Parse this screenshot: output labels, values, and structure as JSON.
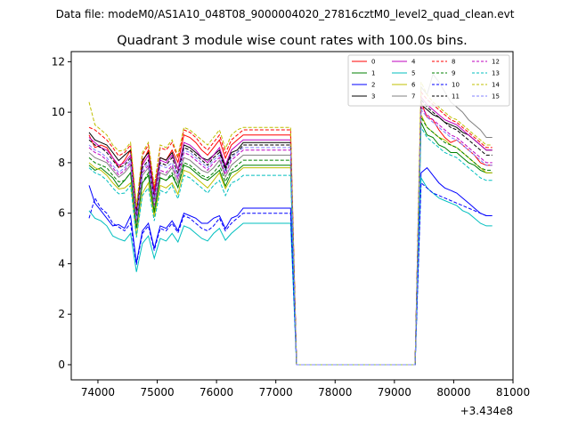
{
  "chart_data": {
    "type": "line",
    "suptitle": "Data file: modeM0/AS1A10_048T08_9000004020_27816cztM0_level2_quad_clean.evt",
    "title": "Quadrant 3 module wise count rates with 100.0s bins.",
    "xlabel": "",
    "ylabel": "",
    "x_offset_label": "+3.434e8",
    "xlim": [
      73550,
      81000
    ],
    "ylim": [
      -0.6,
      12.4
    ],
    "x_ticks": [
      74000,
      75000,
      76000,
      77000,
      78000,
      79000,
      80000,
      81000
    ],
    "x_tick_labels": [
      "74000",
      "75000",
      "76000",
      "77000",
      "78000",
      "79000",
      "80000",
      "81000"
    ],
    "y_ticks": [
      0,
      2,
      4,
      6,
      8,
      10,
      12
    ],
    "y_tick_labels": [
      "0",
      "2",
      "4",
      "6",
      "8",
      "10",
      "12"
    ],
    "legend_position": "top-right",
    "legend_columns": 4,
    "grid": false,
    "x_range": {
      "start": 73850,
      "end": 80650,
      "step": 100
    },
    "series": [
      {
        "name": "0",
        "color": "#ff0000",
        "dash": false,
        "profile": [
          9.1,
          8.6,
          8.7,
          8.6,
          8.2,
          8.3,
          8.1,
          8.5,
          8.4,
          8.0,
          8.5,
          8.8,
          8.2,
          8.1,
          8.5,
          8.9,
          9.1,
          9.0,
          8.8,
          8.5,
          8.3,
          8.6,
          8.9,
          8.8,
          8.7,
          8.9,
          9.1
        ],
        "end_profile": [
          10.4,
          9.8,
          9.7,
          9.3,
          9.0,
          8.8,
          8.9,
          8.7,
          8.5,
          8.3,
          8.0,
          7.9
        ]
      },
      {
        "name": "1",
        "color": "#008000",
        "dash": false,
        "profile": [
          7.9,
          7.7,
          7.8,
          7.6,
          7.4,
          7.5,
          7.3,
          7.6,
          7.5,
          7.2,
          7.5,
          7.7,
          7.4,
          7.3,
          7.5,
          7.8,
          7.9,
          7.8,
          7.6,
          7.4,
          7.3,
          7.5,
          7.7,
          7.6,
          7.6,
          7.7,
          7.9
        ],
        "end_profile": [
          9.6,
          9.1,
          9.0,
          8.7,
          8.6,
          8.4,
          8.4,
          8.2,
          8.0,
          7.9,
          7.7,
          7.6
        ]
      },
      {
        "name": "2",
        "color": "#0000ff",
        "dash": false,
        "profile": [
          7.1,
          6.4,
          6.1,
          5.8,
          5.5,
          5.9,
          5.4,
          5.9,
          5.6,
          5.3,
          5.6,
          5.9,
          5.5,
          5.4,
          5.7,
          5.9,
          6.0,
          5.9,
          5.8,
          5.6,
          5.6,
          5.8,
          5.9,
          5.8,
          5.8,
          5.9,
          6.2
        ],
        "end_profile": [
          7.6,
          7.8,
          7.5,
          7.2,
          7.0,
          6.9,
          6.8,
          6.6,
          6.4,
          6.2,
          6.0,
          5.9
        ]
      },
      {
        "name": "3",
        "color": "#000000",
        "dash": false,
        "profile": [
          9.2,
          8.9,
          8.8,
          8.7,
          8.4,
          8.6,
          8.3,
          8.5,
          8.4,
          8.1,
          8.4,
          8.6,
          8.2,
          8.1,
          8.4,
          8.6,
          8.7,
          8.6,
          8.4,
          8.2,
          8.1,
          8.3,
          8.5,
          8.4,
          8.4,
          8.5,
          8.8
        ],
        "end_profile": [
          10.3,
          10.1,
          9.9,
          9.8,
          9.6,
          9.5,
          9.4,
          9.2,
          9.1,
          8.9,
          8.7,
          8.5
        ]
      },
      {
        "name": "4",
        "color": "#bf00bf",
        "dash": false,
        "profile": [
          9.0,
          8.8,
          8.6,
          8.5,
          8.2,
          8.4,
          8.0,
          8.3,
          8.2,
          7.9,
          8.3,
          8.6,
          8.1,
          8.0,
          8.3,
          8.6,
          8.8,
          8.7,
          8.5,
          8.2,
          8.0,
          8.3,
          8.6,
          8.5,
          8.5,
          8.7,
          8.9
        ],
        "end_profile": [
          10.6,
          10.3,
          10.1,
          9.9,
          9.7,
          9.6,
          9.5,
          9.3,
          9.1,
          8.9,
          8.7,
          8.5
        ]
      },
      {
        "name": "5",
        "color": "#00bfbf",
        "dash": false,
        "profile": [
          6.1,
          5.8,
          5.7,
          5.5,
          5.1,
          5.3,
          4.9,
          5.2,
          5.1,
          4.8,
          5.1,
          5.4,
          5.0,
          4.9,
          5.2,
          5.4,
          5.5,
          5.4,
          5.2,
          5.0,
          4.9,
          5.2,
          5.4,
          5.3,
          5.2,
          5.4,
          5.6
        ],
        "end_profile": [
          7.4,
          7.0,
          6.8,
          6.6,
          6.5,
          6.4,
          6.3,
          6.1,
          6.0,
          5.8,
          5.6,
          5.5
        ]
      },
      {
        "name": "6",
        "color": "#bfbf00",
        "dash": false,
        "profile": [
          8.0,
          7.8,
          7.7,
          7.5,
          7.2,
          7.4,
          7.0,
          7.2,
          7.1,
          6.8,
          7.2,
          7.5,
          7.1,
          7.0,
          7.2,
          7.5,
          7.7,
          7.6,
          7.4,
          7.2,
          7.0,
          7.3,
          7.6,
          7.5,
          7.4,
          7.6,
          7.8
        ],
        "end_profile": [
          9.9,
          9.4,
          9.2,
          9.0,
          8.9,
          8.7,
          8.6,
          8.4,
          8.2,
          8.0,
          7.8,
          7.6
        ]
      },
      {
        "name": "7",
        "color": "#808080",
        "dash": false,
        "profile": [
          8.4,
          8.2,
          8.1,
          8.0,
          7.7,
          7.9,
          7.6,
          7.9,
          7.7,
          7.5,
          7.8,
          8.0,
          7.6,
          7.5,
          7.8,
          8.0,
          8.2,
          8.1,
          7.9,
          7.7,
          7.6,
          7.8,
          8.1,
          8.0,
          7.9,
          8.1,
          8.3
        ],
        "end_profile": [
          11.0,
          10.7,
          11.5,
          11.2,
          10.8,
          10.4,
          10.2,
          10.0,
          9.7,
          9.5,
          9.3,
          9.0
        ]
      },
      {
        "name": "8",
        "color": "#ff0000",
        "dash": true,
        "profile": [
          9.4,
          9.3,
          9.1,
          8.9,
          8.6,
          8.8,
          8.4,
          8.7,
          8.6,
          8.3,
          8.7,
          9.0,
          8.6,
          8.5,
          8.8,
          9.1,
          9.3,
          9.2,
          9.0,
          8.7,
          8.5,
          8.8,
          9.1,
          9.0,
          8.9,
          9.1,
          9.3
        ],
        "end_profile": [
          10.8,
          10.5,
          10.3,
          10.1,
          9.9,
          9.7,
          9.6,
          9.4,
          9.2,
          9.0,
          8.8,
          8.6
        ]
      },
      {
        "name": "9",
        "color": "#008000",
        "dash": true,
        "profile": [
          8.2,
          8.0,
          7.9,
          7.8,
          7.5,
          7.7,
          7.3,
          7.6,
          7.5,
          7.2,
          7.6,
          7.8,
          7.4,
          7.3,
          7.6,
          7.8,
          8.0,
          7.9,
          7.7,
          7.5,
          7.4,
          7.6,
          7.9,
          7.8,
          7.7,
          7.9,
          8.1
        ],
        "end_profile": [
          9.8,
          9.4,
          9.2,
          9.0,
          8.8,
          8.7,
          8.6,
          8.4,
          8.2,
          8.0,
          7.8,
          7.7
        ]
      },
      {
        "name": "10",
        "color": "#0000ff",
        "dash": true,
        "profile": [
          5.8,
          6.6,
          6.2,
          6.0,
          5.6,
          5.8,
          5.3,
          5.6,
          5.5,
          5.2,
          5.5,
          5.8,
          5.4,
          5.3,
          5.6,
          5.8,
          5.9,
          5.8,
          5.6,
          5.4,
          5.3,
          5.5,
          5.8,
          5.7,
          5.6,
          5.8,
          6.0
        ],
        "end_profile": [
          7.2,
          7.0,
          6.8,
          6.7,
          6.6,
          6.5,
          6.4,
          6.3,
          6.2,
          6.1,
          6.0,
          5.9
        ]
      },
      {
        "name": "11",
        "color": "#000000",
        "dash": true,
        "profile": [
          8.9,
          8.7,
          8.6,
          8.4,
          8.1,
          8.3,
          7.9,
          8.2,
          8.1,
          7.8,
          8.1,
          8.4,
          8.0,
          7.9,
          8.2,
          8.4,
          8.6,
          8.5,
          8.3,
          8.1,
          7.9,
          8.2,
          8.4,
          8.3,
          8.3,
          8.4,
          8.7
        ],
        "end_profile": [
          10.5,
          10.2,
          10.0,
          9.8,
          9.6,
          9.4,
          9.3,
          9.1,
          8.9,
          8.7,
          8.5,
          8.3
        ]
      },
      {
        "name": "12",
        "color": "#bf00bf",
        "dash": true,
        "profile": [
          8.6,
          8.4,
          8.3,
          8.1,
          7.8,
          8.0,
          7.7,
          8.0,
          7.9,
          7.6,
          7.9,
          8.1,
          7.7,
          7.6,
          7.9,
          8.2,
          8.4,
          8.3,
          8.1,
          7.9,
          7.7,
          8.0,
          8.2,
          8.1,
          8.1,
          8.3,
          8.5
        ],
        "end_profile": [
          10.2,
          9.9,
          9.7,
          9.5,
          9.3,
          9.1,
          9.0,
          8.8,
          8.6,
          8.4,
          8.2,
          8.0
        ]
      },
      {
        "name": "13",
        "color": "#00bfbf",
        "dash": true,
        "profile": [
          7.8,
          7.6,
          7.5,
          7.3,
          7.0,
          7.2,
          6.8,
          7.1,
          7.0,
          6.7,
          7.0,
          7.3,
          6.9,
          6.8,
          7.1,
          7.3,
          7.5,
          7.4,
          7.2,
          7.0,
          6.8,
          7.1,
          7.3,
          7.2,
          7.2,
          7.3,
          7.5
        ],
        "end_profile": [
          9.4,
          9.0,
          8.8,
          8.6,
          8.4,
          8.3,
          8.2,
          8.0,
          7.8,
          7.6,
          7.4,
          7.3
        ]
      },
      {
        "name": "14",
        "color": "#bfbf00",
        "dash": true,
        "profile": [
          10.4,
          9.5,
          9.3,
          9.1,
          8.7,
          9.0,
          8.5,
          8.8,
          8.7,
          8.4,
          8.8,
          9.1,
          8.7,
          8.6,
          8.9,
          9.2,
          9.4,
          9.3,
          9.1,
          8.9,
          8.7,
          9.0,
          9.3,
          9.2,
          9.1,
          9.3,
          9.4
        ],
        "end_profile": [
          11.2,
          10.7,
          10.4,
          10.2,
          10.0,
          9.8,
          9.7,
          9.5,
          9.3,
          9.1,
          8.9,
          8.7
        ]
      },
      {
        "name": "15",
        "color": "#8080ff",
        "dash": true,
        "profile": [
          8.7,
          8.5,
          8.4,
          8.2,
          7.9,
          8.1,
          7.8,
          8.1,
          8.0,
          7.7,
          8.0,
          8.3,
          7.9,
          7.8,
          8.0,
          8.3,
          8.5,
          8.4,
          8.2,
          8.0,
          7.8,
          8.1,
          8.3,
          8.2,
          8.2,
          8.4,
          8.6
        ],
        "end_profile": [
          10.1,
          9.8,
          9.6,
          9.4,
          9.2,
          9.0,
          8.9,
          8.7,
          8.5,
          8.3,
          8.1,
          7.9
        ]
      }
    ],
    "dip_anomalies": [
      {
        "x": 74350,
        "scale": 0.94
      },
      {
        "x": 74650,
        "scale": 0.72
      },
      {
        "x": 74950,
        "scale": 0.78
      },
      {
        "x": 75350,
        "scale": 0.9
      },
      {
        "x": 76150,
        "scale": 0.93
      }
    ],
    "zero_segment": {
      "start": 77350,
      "end": 79350,
      "value": 0.0
    }
  }
}
